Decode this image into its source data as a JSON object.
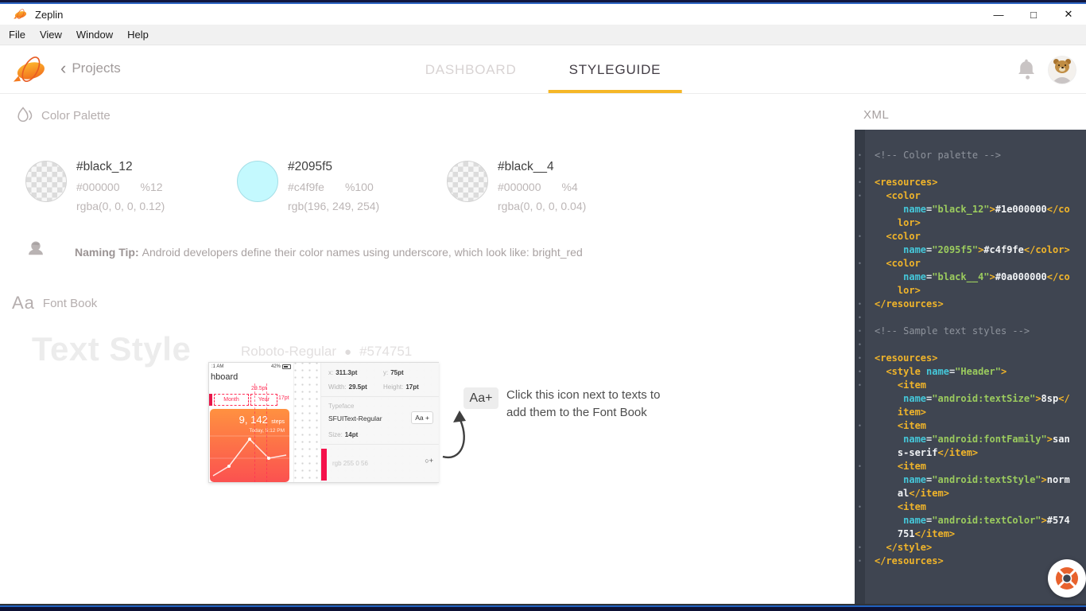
{
  "window": {
    "title": "Zeplin",
    "minimize": "—",
    "maximize": "□",
    "close": "✕"
  },
  "menu_bar": {
    "items": [
      "File",
      "View",
      "Window",
      "Help"
    ]
  },
  "header": {
    "back_chevron": "‹",
    "back_label": "Projects",
    "tabs": [
      {
        "label": "DASHBOARD",
        "active": false
      },
      {
        "label": "STYLEGUIDE",
        "active": true
      }
    ],
    "accent_color": "#f5b728"
  },
  "color_palette": {
    "title": "Color Palette",
    "swatches": [
      {
        "name": "#black_12",
        "hex": "#000000",
        "alpha": "%12",
        "css": "rgba(0, 0, 0, 0.12)",
        "fill": "checker"
      },
      {
        "name": "#2095f5",
        "hex": "#c4f9fe",
        "alpha": "%100",
        "css": "rgb(196, 249, 254)",
        "fill": "#c4f9fe"
      },
      {
        "name": "#black__4",
        "hex": "#000000",
        "alpha": "%4",
        "css": "rgba(0, 0, 0, 0.04)",
        "fill": "checker"
      }
    ],
    "tip_bold": "Naming Tip:",
    "tip_text": "Android developers define their color names using underscore, which look like: bright_red"
  },
  "font_book": {
    "icon_text": "Aa",
    "title": "Font Book",
    "watermark": "Text Style",
    "sample_font_name": "Roboto-Regular",
    "sample_dot": "●",
    "sample_color": "#574751",
    "badge": "Aa+",
    "callout_line1": "Click this icon next to texts to",
    "callout_line2": "add them to the Font Book"
  },
  "thumbnail": {
    "status_left": ":1 AM",
    "battery_pct": "42%",
    "app_title": "hboard",
    "width_note": "29.5pt",
    "segment_month": "Month",
    "segment_year": "Year",
    "height_note": "17pt",
    "steps_value": "9, 142",
    "steps_unit": "steps",
    "steps_time": "Today, 5:12 PM",
    "inspector": {
      "x_label": "x:",
      "x_value": "311.3pt",
      "y_label": "y:",
      "y_value": "75pt",
      "width_label": "Width:",
      "width_value": "29.5pt",
      "height_label": "Height:",
      "height_value": "17pt",
      "typeface_label": "Typeface",
      "typeface_value": "SFUIText-Regular",
      "add_font": "Aa +",
      "size_label": "Size:",
      "size_value": "14pt",
      "color_value": "rgb 255 0 56",
      "add_color": "○+"
    }
  },
  "xml_panel": {
    "title": "XML",
    "colors": {
      "panel_bg": "#3f4551",
      "gutter_bg": "#353b46",
      "tag": "#f0b42a",
      "attr": "#45c8da",
      "string": "#9bcb5e",
      "text": "#f2f4f6",
      "comment": "#8e939c",
      "eq": "#e0e4e9"
    },
    "lines": [
      {
        "b": 1,
        "seg": [
          [
            "c",
            "<!-- Color palette -->"
          ]
        ]
      },
      {
        "b": 1,
        "seg": []
      },
      {
        "b": 1,
        "seg": [
          [
            "t",
            "<resources>"
          ]
        ]
      },
      {
        "b": 1,
        "seg": [
          [
            "t",
            "  <color"
          ]
        ]
      },
      {
        "b": 0,
        "seg": [
          [
            "x",
            "     "
          ],
          [
            "a",
            "name"
          ],
          [
            "w",
            "="
          ],
          [
            "s",
            "\"black_12\""
          ],
          [
            "t",
            ">"
          ],
          [
            "x",
            "#1e000000"
          ],
          [
            "t",
            "</co"
          ]
        ]
      },
      {
        "b": 0,
        "seg": [
          [
            "t",
            "    lor>"
          ]
        ]
      },
      {
        "b": 1,
        "seg": [
          [
            "t",
            "  <color"
          ]
        ]
      },
      {
        "b": 0,
        "seg": [
          [
            "x",
            "     "
          ],
          [
            "a",
            "name"
          ],
          [
            "w",
            "="
          ],
          [
            "s",
            "\"2095f5\""
          ],
          [
            "t",
            ">"
          ],
          [
            "x",
            "#c4f9fe"
          ],
          [
            "t",
            "</color>"
          ]
        ]
      },
      {
        "b": 1,
        "seg": [
          [
            "t",
            "  <color"
          ]
        ]
      },
      {
        "b": 0,
        "seg": [
          [
            "x",
            "     "
          ],
          [
            "a",
            "name"
          ],
          [
            "w",
            "="
          ],
          [
            "s",
            "\"black__4\""
          ],
          [
            "t",
            ">"
          ],
          [
            "x",
            "#0a000000"
          ],
          [
            "t",
            "</co"
          ]
        ]
      },
      {
        "b": 0,
        "seg": [
          [
            "t",
            "    lor>"
          ]
        ]
      },
      {
        "b": 1,
        "seg": [
          [
            "t",
            "</resources>"
          ]
        ]
      },
      {
        "b": 1,
        "seg": []
      },
      {
        "b": 1,
        "seg": [
          [
            "c",
            "<!-- Sample text styles -->"
          ]
        ]
      },
      {
        "b": 1,
        "seg": []
      },
      {
        "b": 1,
        "seg": [
          [
            "t",
            "<resources>"
          ]
        ]
      },
      {
        "b": 1,
        "seg": [
          [
            "t",
            "  <style "
          ],
          [
            "a",
            "name"
          ],
          [
            "w",
            "="
          ],
          [
            "s",
            "\"Header\""
          ],
          [
            "t",
            ">"
          ]
        ]
      },
      {
        "b": 1,
        "seg": [
          [
            "t",
            "    <item"
          ]
        ]
      },
      {
        "b": 0,
        "seg": [
          [
            "x",
            "     "
          ],
          [
            "a",
            "name"
          ],
          [
            "w",
            "="
          ],
          [
            "s",
            "\"android:textSize\""
          ],
          [
            "t",
            ">"
          ],
          [
            "x",
            "8sp"
          ],
          [
            "t",
            "</"
          ]
        ]
      },
      {
        "b": 0,
        "seg": [
          [
            "t",
            "    item>"
          ]
        ]
      },
      {
        "b": 1,
        "seg": [
          [
            "t",
            "    <item"
          ]
        ]
      },
      {
        "b": 0,
        "seg": [
          [
            "x",
            "     "
          ],
          [
            "a",
            "name"
          ],
          [
            "w",
            "="
          ],
          [
            "s",
            "\"android:fontFamily\""
          ],
          [
            "t",
            ">"
          ],
          [
            "x",
            "san"
          ]
        ]
      },
      {
        "b": 0,
        "seg": [
          [
            "x",
            "    s-serif"
          ],
          [
            "t",
            "</item>"
          ]
        ]
      },
      {
        "b": 1,
        "seg": [
          [
            "t",
            "    <item"
          ]
        ]
      },
      {
        "b": 0,
        "seg": [
          [
            "x",
            "     "
          ],
          [
            "a",
            "name"
          ],
          [
            "w",
            "="
          ],
          [
            "s",
            "\"android:textStyle\""
          ],
          [
            "t",
            ">"
          ],
          [
            "x",
            "norm"
          ]
        ]
      },
      {
        "b": 0,
        "seg": [
          [
            "x",
            "    al"
          ],
          [
            "t",
            "</item>"
          ]
        ]
      },
      {
        "b": 1,
        "seg": [
          [
            "t",
            "    <item"
          ]
        ]
      },
      {
        "b": 0,
        "seg": [
          [
            "x",
            "     "
          ],
          [
            "a",
            "name"
          ],
          [
            "w",
            "="
          ],
          [
            "s",
            "\"android:textColor\""
          ],
          [
            "t",
            ">"
          ],
          [
            "x",
            "#574"
          ]
        ]
      },
      {
        "b": 0,
        "seg": [
          [
            "x",
            "    751"
          ],
          [
            "t",
            "</item>"
          ]
        ]
      },
      {
        "b": 1,
        "seg": [
          [
            "t",
            "  </style>"
          ]
        ]
      },
      {
        "b": 1,
        "seg": [
          [
            "t",
            "</resources>"
          ]
        ]
      }
    ]
  }
}
